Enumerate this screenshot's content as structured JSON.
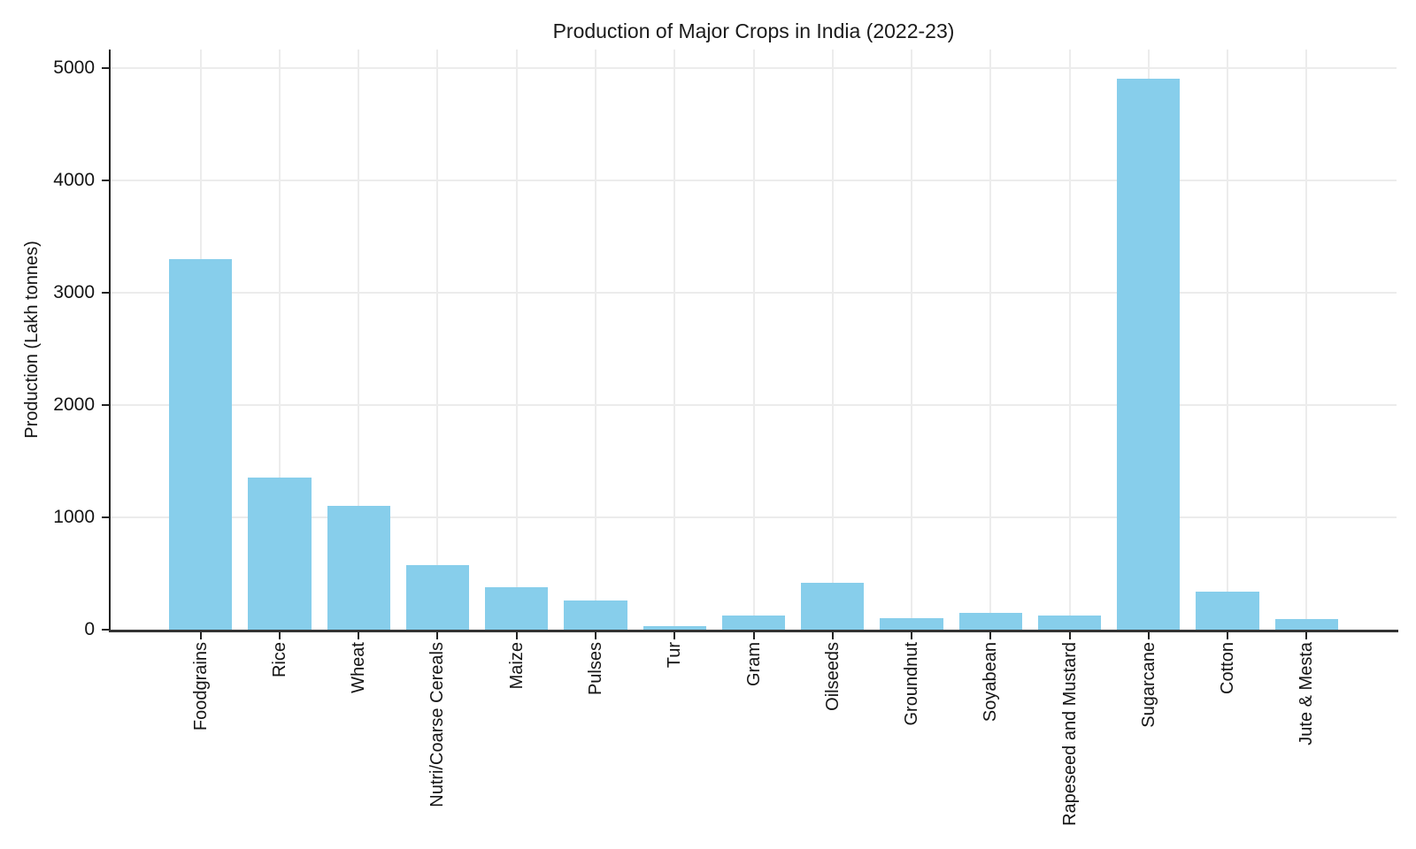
{
  "figure": {
    "title": "Production of Major Crops in India (2022-23)"
  },
  "chart_data": {
    "type": "bar",
    "title": "Production of Major Crops in India (2022-23)",
    "xlabel": "",
    "ylabel": "Production (Lakh tonnes)",
    "categories": [
      "Foodgrains",
      "Rice",
      "Wheat",
      "Nutri/Coarse Cereals",
      "Maize",
      "Pulses",
      "Tur",
      "Gram",
      "Oilseeds",
      "Groundnut",
      "Soyabean",
      "Rapeseed and Mustard",
      "Sugarcane",
      "Cotton",
      "Jute & Mesta"
    ],
    "values": [
      3297,
      1357,
      1106,
      573,
      381,
      261,
      33,
      123,
      414,
      103,
      150,
      126,
      4905,
      337,
      94
    ],
    "yticks": [
      0,
      1000,
      2000,
      3000,
      4000,
      5000
    ],
    "ylim": [
      0,
      5165
    ],
    "x_tick_rotation": 90,
    "grid": true,
    "legend": false,
    "bar_color": "#87CEEB",
    "grid_color": "#ececec",
    "spine_color": "#222222"
  }
}
